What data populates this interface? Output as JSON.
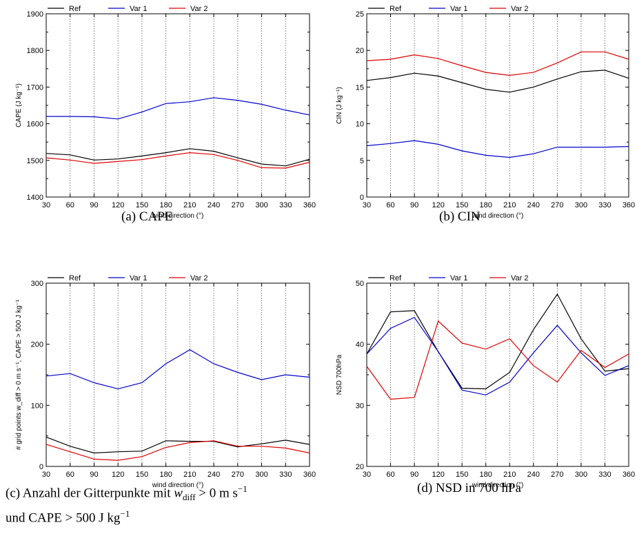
{
  "x_categories": [
    "30",
    "60",
    "90",
    "120",
    "150",
    "180",
    "210",
    "240",
    "270",
    "300",
    "330",
    "360"
  ],
  "legend_colors": {
    "Ref": "#000000",
    "Var 1": "#0000cc",
    "Var 2": "#dd0000"
  },
  "captions": {
    "a": "(a)  CAPE",
    "b": "(b)  CIN",
    "c_line1_pre": "(c)  Anzahl der Gitterpunkte mit ",
    "c_line1_var": "w",
    "c_line1_sub": "diff",
    "c_line1_post": " > 0 m s",
    "c_line1_exp": "−1",
    "c_line2_pre": "und CAPE > 500 J kg",
    "c_line2_exp": "−1",
    "d": "(d)  NSD in 700 hPa"
  },
  "chart_data": [
    {
      "id": "a",
      "type": "line",
      "xlabel": "wind direction (°)",
      "ylabel": "CAPE (J kg⁻¹)",
      "ylim": [
        1400,
        1900
      ],
      "yticks": [
        "1400",
        "1500",
        "1600",
        "1700",
        "1800",
        "1900"
      ],
      "legend": "top-left",
      "series": [
        {
          "name": "Ref",
          "color": "#000000",
          "values": [
            1519,
            1515,
            1501,
            1504,
            1512,
            1521,
            1532,
            1525,
            1507,
            1490,
            1485,
            1503
          ]
        },
        {
          "name": "Var 1",
          "color": "#0000cc",
          "values": [
            1620,
            1620,
            1619,
            1613,
            1632,
            1655,
            1660,
            1671,
            1664,
            1653,
            1637,
            1624
          ]
        },
        {
          "name": "Var 2",
          "color": "#dd0000",
          "values": [
            1507,
            1501,
            1492,
            1497,
            1502,
            1512,
            1521,
            1516,
            1500,
            1480,
            1479,
            1495
          ]
        }
      ]
    },
    {
      "id": "b",
      "type": "line",
      "xlabel": "wind direction (°)",
      "ylabel": "CIN (J kg⁻¹)",
      "ylim": [
        0,
        25
      ],
      "yticks": [
        "0",
        "5",
        "10",
        "15",
        "20",
        "25"
      ],
      "legend": "top-left",
      "series": [
        {
          "name": "Ref",
          "color": "#000000",
          "values": [
            15.9,
            16.3,
            16.9,
            16.5,
            15.6,
            14.7,
            14.3,
            15.0,
            16.1,
            17.1,
            17.3,
            16.2
          ]
        },
        {
          "name": "Var 1",
          "color": "#0000cc",
          "values": [
            7.0,
            7.3,
            7.7,
            7.2,
            6.3,
            5.7,
            5.4,
            5.9,
            6.8,
            6.8,
            6.8,
            6.9
          ]
        },
        {
          "name": "Var 2",
          "color": "#dd0000",
          "values": [
            18.6,
            18.8,
            19.4,
            18.9,
            17.9,
            17.0,
            16.6,
            17.0,
            18.3,
            19.8,
            19.8,
            18.8
          ]
        }
      ]
    },
    {
      "id": "c",
      "type": "line",
      "xlabel": "wind direction (°)",
      "ylabel": "# grid points w_diff > 0 m s⁻¹, CAPE > 500 J kg⁻¹",
      "ylim": [
        0,
        300
      ],
      "yticks": [
        "0",
        "100",
        "200",
        "300"
      ],
      "legend": "top-left",
      "series": [
        {
          "name": "Ref",
          "color": "#000000",
          "values": [
            48,
            33,
            22,
            24,
            25,
            42,
            41,
            41,
            32,
            37,
            43,
            36
          ]
        },
        {
          "name": "Var 1",
          "color": "#0000cc",
          "values": [
            148,
            152,
            137,
            127,
            137,
            168,
            191,
            168,
            154,
            142,
            150,
            146
          ]
        },
        {
          "name": "Var 2",
          "color": "#dd0000",
          "values": [
            36,
            24,
            12,
            10,
            16,
            31,
            39,
            42,
            33,
            33,
            30,
            22
          ]
        }
      ]
    },
    {
      "id": "d",
      "type": "line",
      "xlabel": "wind direction (°)",
      "ylabel": "NSD 700hPa",
      "ylim": [
        20,
        50
      ],
      "yticks": [
        "20",
        "30",
        "40",
        "50"
      ],
      "legend": "top-left",
      "series": [
        {
          "name": "Ref",
          "color": "#000000",
          "values": [
            38.4,
            45.3,
            45.5,
            38.8,
            32.8,
            32.7,
            35.4,
            42.4,
            48.2,
            40.9,
            35.6,
            36.0
          ]
        },
        {
          "name": "Var 1",
          "color": "#0000cc",
          "values": [
            38.4,
            42.6,
            44.4,
            38.8,
            32.5,
            31.7,
            33.8,
            38.6,
            43.1,
            38.6,
            34.9,
            36.5
          ]
        },
        {
          "name": "Var 2",
          "color": "#dd0000",
          "values": [
            36.4,
            31.0,
            31.3,
            43.8,
            40.2,
            39.2,
            40.9,
            36.5,
            33.8,
            39.0,
            36.2,
            38.4
          ]
        }
      ]
    }
  ]
}
